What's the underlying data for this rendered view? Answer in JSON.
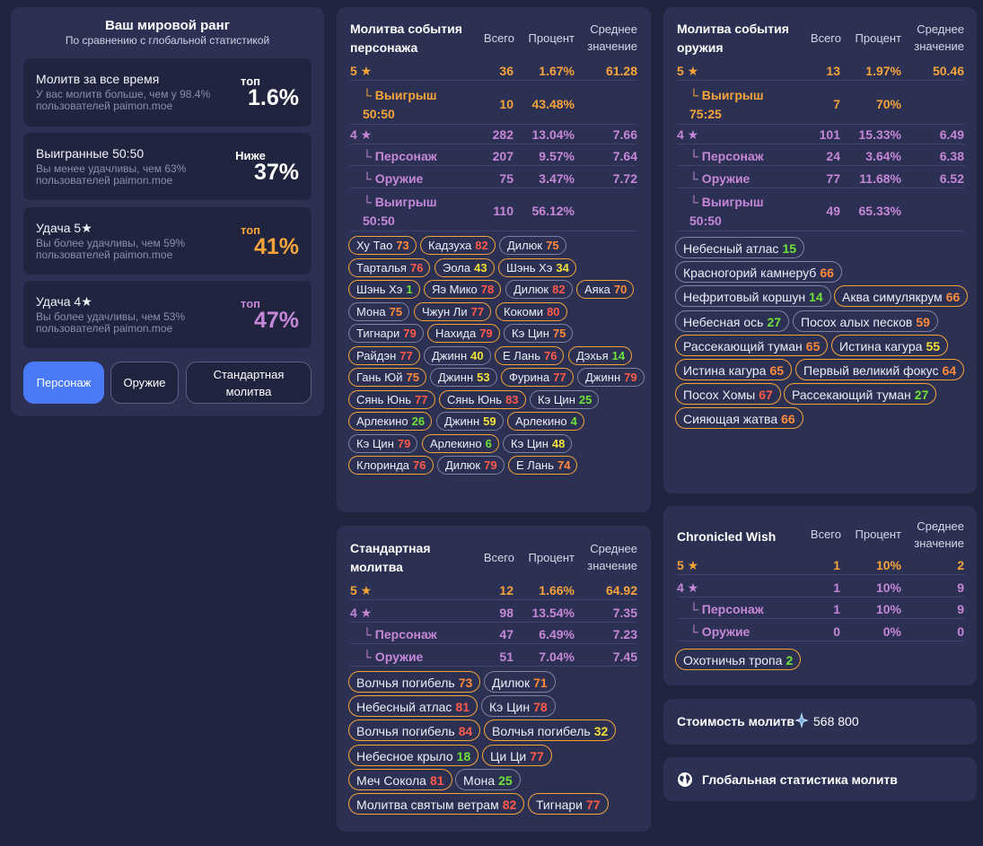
{
  "rank": {
    "title": "Ваш мировой ранг",
    "subtitle": "По сравнению с глобальной статистикой",
    "boxes": [
      {
        "label": "Молитв за все время",
        "desc": "У вас молитв больше, чем у 98.4% пользователей paimon.moe",
        "small": "топ",
        "big": "1.6%",
        "color": "#ffffff"
      },
      {
        "label": "Выигранные 50:50",
        "desc": "Вы менее удачливы, чем 63% пользователей paimon.moe",
        "small": "Ниже",
        "big": "37%",
        "color": "#ffffff"
      },
      {
        "label": "Удача 5★",
        "desc": "Вы более удачливы, чем 59% пользователей paimon.moe",
        "small": "топ",
        "big": "41%",
        "color": "#f6a43a"
      },
      {
        "label": "Удача 4★",
        "desc": "Вы более удачливы, чем 53% пользователей paimon.moe",
        "small": "топ",
        "big": "47%",
        "color": "#c687d8"
      }
    ],
    "tabs": {
      "character": "Персонаж",
      "weapon": "Оружие",
      "standard": "Стандартная молитва"
    }
  },
  "headers": {
    "total": "Всего",
    "percent": "Процент",
    "avg": "Среднее значение"
  },
  "char": {
    "title": "Молитва события персонажа",
    "rows": [
      {
        "label": "5 ★",
        "total": "36",
        "pct": "1.67%",
        "avg": "61.28",
        "cls": "o"
      },
      {
        "label": "└ Выигрыш 50:50",
        "total": "10",
        "pct": "43.48%",
        "avg": "",
        "cls": "o"
      },
      {
        "label": "4 ★",
        "total": "282",
        "pct": "13.04%",
        "avg": "7.66",
        "cls": "p"
      },
      {
        "label": "└ Персонаж",
        "total": "207",
        "pct": "9.57%",
        "avg": "7.64",
        "cls": "p"
      },
      {
        "label": "└ Оружие",
        "total": "75",
        "pct": "3.47%",
        "avg": "7.72",
        "cls": "p"
      },
      {
        "label": "└ Выигрыш 50:50",
        "total": "110",
        "pct": "56.12%",
        "avg": "",
        "cls": "p"
      }
    ],
    "chips": [
      {
        "name": "Ху Тао",
        "n": "73",
        "c": "n-orange",
        "gold": true
      },
      {
        "name": "Кадзуха",
        "n": "82",
        "c": "n-red",
        "gold": true
      },
      {
        "name": "Дилюк",
        "n": "75",
        "c": "n-orange",
        "gold": false
      },
      {
        "name": "Тарталья",
        "n": "76",
        "c": "n-red",
        "gold": true
      },
      {
        "name": "Эола",
        "n": "43",
        "c": "n-yellow",
        "gold": true
      },
      {
        "name": "Шэнь Хэ",
        "n": "34",
        "c": "n-yellow",
        "gold": true
      },
      {
        "name": "Шэнь Хэ",
        "n": "1",
        "c": "n-green",
        "gold": true
      },
      {
        "name": "Яэ Мико",
        "n": "78",
        "c": "n-red",
        "gold": true
      },
      {
        "name": "Дилюк",
        "n": "82",
        "c": "n-red",
        "gold": false
      },
      {
        "name": "Аяка",
        "n": "70",
        "c": "n-orange",
        "gold": true
      },
      {
        "name": "Мона",
        "n": "75",
        "c": "n-orange",
        "gold": false
      },
      {
        "name": "Чжун Ли",
        "n": "77",
        "c": "n-red",
        "gold": true
      },
      {
        "name": "Кокоми",
        "n": "80",
        "c": "n-red",
        "gold": true
      },
      {
        "name": "Тигнари",
        "n": "79",
        "c": "n-red",
        "gold": false
      },
      {
        "name": "Нахида",
        "n": "79",
        "c": "n-red",
        "gold": true
      },
      {
        "name": "Кэ Цин",
        "n": "75",
        "c": "n-orange",
        "gold": false
      },
      {
        "name": "Райдэн",
        "n": "77",
        "c": "n-red",
        "gold": true
      },
      {
        "name": "Джинн",
        "n": "40",
        "c": "n-yellow",
        "gold": false
      },
      {
        "name": "Е Лань",
        "n": "76",
        "c": "n-red",
        "gold": true
      },
      {
        "name": "Дэхья",
        "n": "14",
        "c": "n-green",
        "gold": true
      },
      {
        "name": "Гань Юй",
        "n": "75",
        "c": "n-orange",
        "gold": true
      },
      {
        "name": "Джинн",
        "n": "53",
        "c": "n-yellow",
        "gold": false
      },
      {
        "name": "Фурина",
        "n": "77",
        "c": "n-red",
        "gold": true
      },
      {
        "name": "Джинн",
        "n": "79",
        "c": "n-red",
        "gold": false
      },
      {
        "name": "Сянь Юнь",
        "n": "77",
        "c": "n-red",
        "gold": true
      },
      {
        "name": "Сянь Юнь",
        "n": "83",
        "c": "n-red",
        "gold": true
      },
      {
        "name": "Кэ Цин",
        "n": "25",
        "c": "n-green",
        "gold": false
      },
      {
        "name": "Арлекино",
        "n": "26",
        "c": "n-green",
        "gold": true
      },
      {
        "name": "Джинн",
        "n": "59",
        "c": "n-yellow",
        "gold": false
      },
      {
        "name": "Арлекино",
        "n": "4",
        "c": "n-green",
        "gold": true
      },
      {
        "name": "Кэ Цин",
        "n": "79",
        "c": "n-red",
        "gold": false
      },
      {
        "name": "Арлекино",
        "n": "6",
        "c": "n-green",
        "gold": true
      },
      {
        "name": "Кэ Цин",
        "n": "48",
        "c": "n-yellow",
        "gold": false
      },
      {
        "name": "Клоринда",
        "n": "76",
        "c": "n-red",
        "gold": true
      },
      {
        "name": "Дилюк",
        "n": "79",
        "c": "n-red",
        "gold": false
      },
      {
        "name": "Е Лань",
        "n": "74",
        "c": "n-orange",
        "gold": true
      }
    ]
  },
  "weapon": {
    "title": "Молитва события оружия",
    "rows": [
      {
        "label": "5 ★",
        "total": "13",
        "pct": "1.97%",
        "avg": "50.46",
        "cls": "o"
      },
      {
        "label": "└ Выигрыш 75:25",
        "total": "7",
        "pct": "70%",
        "avg": "",
        "cls": "o"
      },
      {
        "label": "4 ★",
        "total": "101",
        "pct": "15.33%",
        "avg": "6.49",
        "cls": "p"
      },
      {
        "label": "└ Персонаж",
        "total": "24",
        "pct": "3.64%",
        "avg": "6.38",
        "cls": "p"
      },
      {
        "label": "└ Оружие",
        "total": "77",
        "pct": "11.68%",
        "avg": "6.52",
        "cls": "p"
      },
      {
        "label": "└ Выигрыш 50:50",
        "total": "49",
        "pct": "65.33%",
        "avg": "",
        "cls": "p"
      }
    ],
    "chips": [
      {
        "name": "Небесный атлас",
        "n": "15",
        "c": "n-green",
        "gold": false
      },
      {
        "name": "Красногорий камнеруб",
        "n": "66",
        "c": "n-orange",
        "gold": false
      },
      {
        "name": "Нефритовый коршун",
        "n": "14",
        "c": "n-green",
        "gold": false
      },
      {
        "name": "Аква симулякрум",
        "n": "66",
        "c": "n-orange",
        "gold": true
      },
      {
        "name": "Небесная ось",
        "n": "27",
        "c": "n-green",
        "gold": false
      },
      {
        "name": "Посох алых песков",
        "n": "59",
        "c": "n-orange",
        "gold": false
      },
      {
        "name": "Рассекающий туман",
        "n": "65",
        "c": "n-orange",
        "gold": true
      },
      {
        "name": "Истина кагура",
        "n": "55",
        "c": "n-yellow",
        "gold": true
      },
      {
        "name": "Истина кагура",
        "n": "65",
        "c": "n-orange",
        "gold": true
      },
      {
        "name": "Первый великий фокус",
        "n": "64",
        "c": "n-orange",
        "gold": true
      },
      {
        "name": "Посох Хомы",
        "n": "67",
        "c": "n-red",
        "gold": true
      },
      {
        "name": "Рассекающий туман",
        "n": "27",
        "c": "n-green",
        "gold": true
      },
      {
        "name": "Сияющая жатва",
        "n": "66",
        "c": "n-orange",
        "gold": true
      }
    ]
  },
  "standard": {
    "title": "Стандартная молитва",
    "rows": [
      {
        "label": "5 ★",
        "total": "12",
        "pct": "1.66%",
        "avg": "64.92",
        "cls": "o"
      },
      {
        "label": "4 ★",
        "total": "98",
        "pct": "13.54%",
        "avg": "7.35",
        "cls": "p"
      },
      {
        "label": "└ Персонаж",
        "total": "47",
        "pct": "6.49%",
        "avg": "7.23",
        "cls": "p"
      },
      {
        "label": "└ Оружие",
        "total": "51",
        "pct": "7.04%",
        "avg": "7.45",
        "cls": "p"
      }
    ],
    "chips": [
      {
        "name": "Волчья погибель",
        "n": "73",
        "c": "n-orange",
        "gold": true
      },
      {
        "name": "Дилюк",
        "n": "71",
        "c": "n-orange",
        "gold": false
      },
      {
        "name": "Небесный атлас",
        "n": "81",
        "c": "n-red",
        "gold": true
      },
      {
        "name": "Кэ Цин",
        "n": "78",
        "c": "n-red",
        "gold": false
      },
      {
        "name": "Волчья погибель",
        "n": "84",
        "c": "n-red",
        "gold": true
      },
      {
        "name": "Волчья погибель",
        "n": "32",
        "c": "n-yellow",
        "gold": true
      },
      {
        "name": "Небесное крыло",
        "n": "18",
        "c": "n-green",
        "gold": true
      },
      {
        "name": "Ци Ци",
        "n": "77",
        "c": "n-red",
        "gold": true
      },
      {
        "name": "Меч Сокола",
        "n": "81",
        "c": "n-red",
        "gold": true
      },
      {
        "name": "Мона",
        "n": "25",
        "c": "n-green",
        "gold": false
      },
      {
        "name": "Молитва святым ветрам",
        "n": "82",
        "c": "n-red",
        "gold": true
      },
      {
        "name": "Тигнари",
        "n": "77",
        "c": "n-red",
        "gold": true
      }
    ]
  },
  "chronicled": {
    "title": "Chronicled Wish",
    "rows": [
      {
        "label": "5 ★",
        "total": "1",
        "pct": "10%",
        "avg": "2",
        "cls": "o"
      },
      {
        "label": "4 ★",
        "total": "1",
        "pct": "10%",
        "avg": "9",
        "cls": "p"
      },
      {
        "label": "└ Персонаж",
        "total": "1",
        "pct": "10%",
        "avg": "9",
        "cls": "p"
      },
      {
        "label": "└ Оружие",
        "total": "0",
        "pct": "0%",
        "avg": "0",
        "cls": "p"
      }
    ],
    "chips": [
      {
        "name": "Охотничья тропа",
        "n": "2",
        "c": "n-green",
        "gold": true
      }
    ]
  },
  "cost": {
    "label": "Стоимость молитв",
    "icon": "primogem-icon",
    "value": "568 800"
  },
  "global": {
    "label": "Глобальная статистика молитв",
    "icon": "globe-icon"
  }
}
